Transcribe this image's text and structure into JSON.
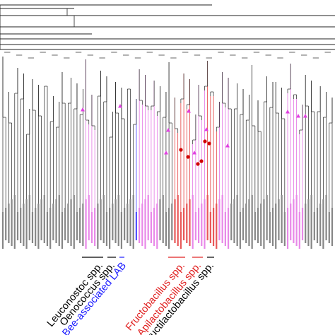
{
  "colors": {
    "branch": "#222222",
    "leaf_default": "#222222",
    "bee_associated": "#1a1aff",
    "bee_host_leaf": "#e060e0",
    "fructobacillus": "#e02020",
    "apilactobacillus": "#e02020",
    "event_marker": "#e040e0",
    "loss_marker": "#d00000"
  },
  "clade_labels": [
    {
      "id": "leuconostoc",
      "text": "Leuconostoc spp.",
      "color": "#000000"
    },
    {
      "id": "oenococcus",
      "text": "Oenococcus spp.",
      "color": "#000000"
    },
    {
      "id": "bee-lab",
      "text": "Bee-associated LAB",
      "color": "#1a1aff"
    },
    {
      "id": "fructobacillus",
      "text": "Fructobacillus spp.",
      "color": "#e02020"
    },
    {
      "id": "apilactobacillus",
      "text": "Apilactobacillus spp.",
      "color": "#e02020"
    },
    {
      "id": "fructilactobacillus",
      "text": "Fructilactobacillus spp.",
      "color": "#000000"
    }
  ],
  "bracket_colors": [
    "#000000",
    "#000000",
    "#1a1aff",
    "#e02020",
    "#e02020",
    "#000000"
  ],
  "marker_icons": {
    "gain": "triangle-marker-icon",
    "loss": "circle-marker-icon"
  }
}
